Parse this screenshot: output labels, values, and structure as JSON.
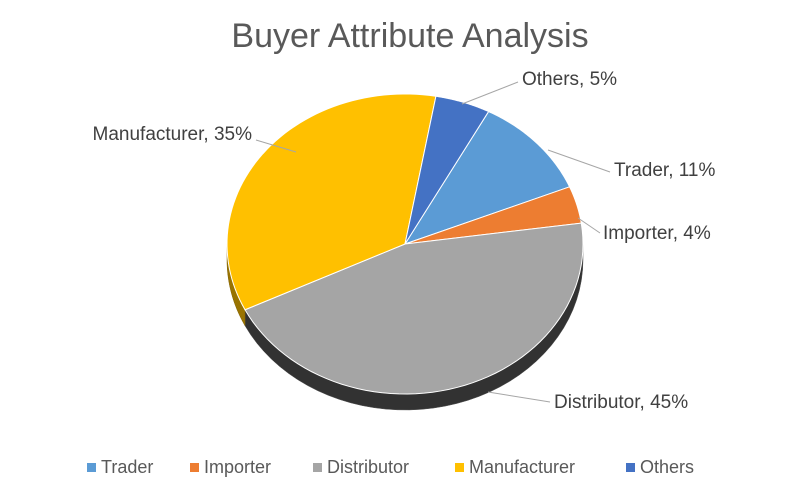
{
  "chart_data": {
    "type": "pie",
    "title": "Buyer Attribute Analysis",
    "categories": [
      "Trader",
      "Importer",
      "Distributor",
      "Manufacturer",
      "Others"
    ],
    "values": [
      11,
      4,
      45,
      35,
      5
    ],
    "value_labels": [
      "Trader, 11%",
      "Importer, 4%",
      "Distributor, 45%",
      "Manufacturer, 35%",
      "Others, 5%"
    ],
    "colors": [
      "#5b9bd5",
      "#ed7d31",
      "#a5a5a5",
      "#ffc000",
      "#4472c4"
    ],
    "legend": "bottom"
  }
}
